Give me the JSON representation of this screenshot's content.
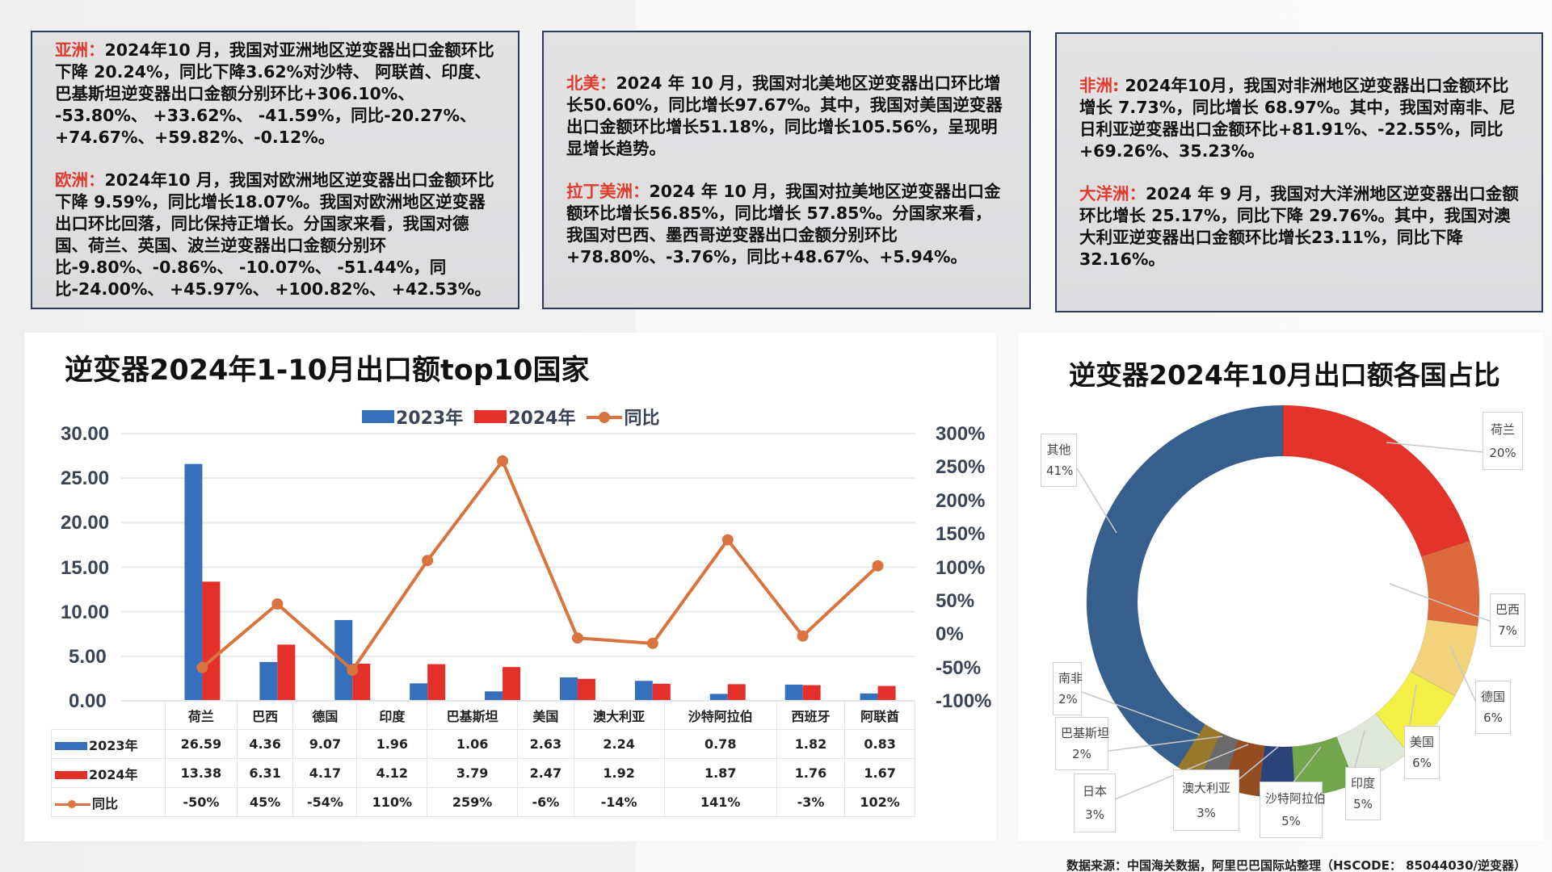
{
  "panels": [
    {
      "sections": [
        {
          "region": "亚洲：",
          "text": "2024年10 月，我国对亚洲地区逆变器出口金额环比下降 20.24%，同比下降3.62%对沙特、 阿联酋、印度、巴基斯坦逆变器出口金额分别环比+306.10%、 -53.80%、 +33.62%、 -41.59%，同比-20.27%、 +74.67%、+59.82%、-0.12%。"
        },
        {
          "region": "欧洲：",
          "text": "2024年10 月，我国对欧洲地区逆变器出口金额环比下降 9.59%，同比增长18.07%。我国对欧洲地区逆变器出口环比回落，同比保持正增长。分国家来看，我国对德国、荷兰、英国、波兰逆变器出口金额分别环比-9.80%、-0.86%、 -10.07%、 -51.44%，同比-24.00%、 +45.97%、 +100.82%、 +42.53%。"
        }
      ]
    },
    {
      "sections": [
        {
          "region": "北美：",
          "text": "2024 年 10 月，我国对北美地区逆变器出口环比增长50.60%，同比增长97.67%。其中，我国对美国逆变器出口金额环比增长51.18%，同比增长105.56%，呈现明显增长趋势。"
        },
        {
          "region": "拉丁美洲：",
          "text": "2024 年 10 月，我国对拉美地区逆变器出口金额环比增长56.85%，同比增长 57.85%。分国家来看，我国对巴西、墨西哥逆变器出口金额分别环比+78.80%、-3.76%，同比+48.67%、+5.94%。"
        }
      ]
    },
    {
      "sections": [
        {
          "region": "非洲:",
          "text": " 2024年10月，我国对非洲地区逆变器出口金额环比增长 7.73%，同比增长 68.97%。其中，我国对南非、尼日利亚逆变器出口金额环比+81.91%、-22.55%，同比+69.26%、35.23%。"
        },
        {
          "region": "大洋洲：",
          "text": "2024 年 9 月，我国对大洋洲地区逆变器出口金额环比增长 25.17%，同比下降 29.76%。其中，我国对澳大利亚逆变器出口金额环比增长23.11%，同比下降32.16%。"
        }
      ]
    }
  ],
  "bar_chart": {
    "title": "逆变器2024年1-10月出口额top10国家",
    "legend": [
      "2023年",
      "2024年",
      "同比"
    ],
    "left_ticks": [
      "30.00",
      "25.00",
      "20.00",
      "15.00",
      "10.00",
      "5.00",
      "0.00"
    ],
    "right_ticks": [
      "300%",
      "250%",
      "200%",
      "150%",
      "100%",
      "50%",
      "0%",
      "-50%",
      "-100%"
    ],
    "table": {
      "row_labels": [
        "2023年",
        "2024年",
        "同比"
      ],
      "countries": [
        "荷兰",
        "巴西",
        "德国",
        "印度",
        "巴基斯坦",
        "美国",
        "澳大利亚",
        "沙特阿拉伯",
        "西班牙",
        "阿联酋"
      ],
      "v2023": [
        "26.59",
        "4.36",
        "9.07",
        "1.96",
        "1.06",
        "2.63",
        "2.24",
        "0.78",
        "1.82",
        "0.83"
      ],
      "v2024": [
        "13.38",
        "6.31",
        "4.17",
        "4.12",
        "3.79",
        "2.47",
        "1.92",
        "1.87",
        "1.76",
        "1.67"
      ],
      "yoy": [
        "-50%",
        "45%",
        "-54%",
        "110%",
        "259%",
        "-6%",
        "-14%",
        "141%",
        "-3%",
        "102%"
      ]
    }
  },
  "donut_chart": {
    "title": "逆变器2024年10月出口额各国占比",
    "slices": [
      {
        "label": "荷兰",
        "pct": "20%"
      },
      {
        "label": "巴西",
        "pct": "7%"
      },
      {
        "label": "德国",
        "pct": "6%"
      },
      {
        "label": "美国",
        "pct": "6%"
      },
      {
        "label": "印度",
        "pct": "5%"
      },
      {
        "label": "沙特阿拉伯",
        "pct": "5%"
      },
      {
        "label": "澳大利亚",
        "pct": "3%"
      },
      {
        "label": "日本",
        "pct": "3%"
      },
      {
        "label": "巴基斯坦",
        "pct": "2%"
      },
      {
        "label": "南非",
        "pct": "2%"
      },
      {
        "label": "其他",
        "pct": "41%"
      }
    ]
  },
  "footer": "数据来源：中国海关数据，阿里巴巴国际站整理（HSCODE： 85044030/逆变器）",
  "colors": {
    "bar_2023": "#3670bd",
    "bar_2024": "#e3302a",
    "yoy_line": "#d9743f",
    "region_label": "#e03a2c",
    "panel_border": "#2c3a5a"
  },
  "chart_data": [
    {
      "type": "bar",
      "title": "逆变器2024年1-10月出口额top10国家",
      "categories": [
        "荷兰",
        "巴西",
        "德国",
        "印度",
        "巴基斯坦",
        "美国",
        "澳大利亚",
        "沙特阿拉伯",
        "西班牙",
        "阿联酋"
      ],
      "series": [
        {
          "name": "2023年",
          "type": "bar",
          "axis": "left",
          "values": [
            26.59,
            4.36,
            9.07,
            1.96,
            1.06,
            2.63,
            2.24,
            0.78,
            1.82,
            0.83
          ]
        },
        {
          "name": "2024年",
          "type": "bar",
          "axis": "left",
          "values": [
            13.38,
            6.31,
            4.17,
            4.12,
            3.79,
            2.47,
            1.92,
            1.87,
            1.76,
            1.67
          ]
        },
        {
          "name": "同比",
          "type": "line",
          "axis": "right",
          "unit": "%",
          "values": [
            -50,
            45,
            -54,
            110,
            259,
            -6,
            -14,
            141,
            -3,
            102
          ]
        }
      ],
      "xlabel": "",
      "ylabel": "",
      "ylim": [
        0,
        30
      ],
      "y2lim": [
        -100,
        300
      ],
      "legend_position": "top",
      "grid": true,
      "data_table": true
    },
    {
      "type": "pie",
      "subtype": "donut",
      "title": "逆变器2024年10月出口额各国占比",
      "categories": [
        "荷兰",
        "巴西",
        "德国",
        "美国",
        "印度",
        "沙特阿拉伯",
        "澳大利亚",
        "日本",
        "巴基斯坦",
        "南非",
        "其他"
      ],
      "values": [
        20,
        7,
        6,
        6,
        5,
        5,
        3,
        3,
        2,
        2,
        41
      ],
      "unit": "%",
      "colors": [
        "#e3332a",
        "#dd6a3c",
        "#f2d27a",
        "#f3ef45",
        "#dfe7d8",
        "#71a64a",
        "#2a4479",
        "#944d23",
        "#6a6a6a",
        "#98782a",
        "#365f8e"
      ]
    }
  ]
}
